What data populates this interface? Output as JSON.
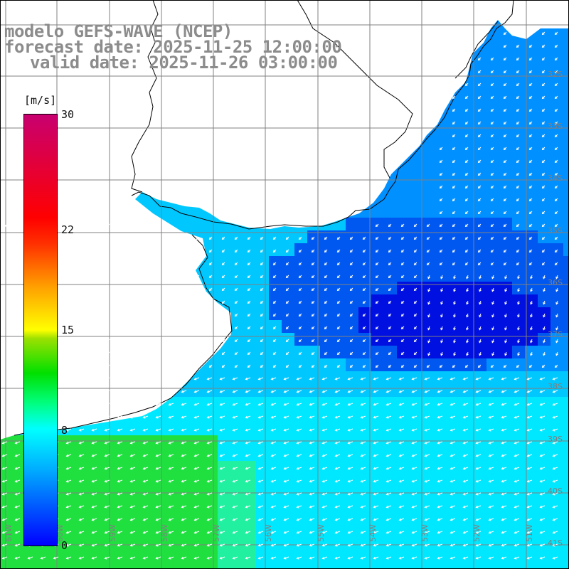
{
  "header": {
    "title_line1": "modelo GEFS-WAVE (NCEP)",
    "title_line2": "forecast date: 2025-11-25 12:00:00",
    "title_line3": "valid date: 2025-11-26 03:00:00"
  },
  "colorbar": {
    "unit": "[m/s]",
    "min": 0,
    "max": 30,
    "ticks": [
      {
        "label": "30",
        "value": 30
      },
      {
        "label": "22",
        "value": 22
      },
      {
        "label": "15",
        "value": 15
      },
      {
        "label": "8",
        "value": 8
      },
      {
        "label": "0",
        "value": 0
      }
    ],
    "colors": [
      "#0000ff",
      "#00b0ff",
      "#00ffff",
      "#00ff80",
      "#00e000",
      "#ffff00",
      "#ff0000",
      "#c80070"
    ]
  },
  "map": {
    "lat_labels": [
      "32S",
      "33S",
      "34S",
      "35S",
      "36S",
      "37S",
      "38S",
      "39S",
      "40S",
      "41S"
    ],
    "lon_labels": [
      "61W",
      "60W",
      "59W",
      "58W",
      "57W",
      "56W",
      "55W",
      "54W",
      "53W",
      "52W",
      "51W"
    ],
    "land_color": "#ffffff",
    "grid_color": "#808080",
    "coast_color": "#000000",
    "arrow_color": "#ffffff",
    "field_description_colors": {
      "weak": "#0010e0",
      "medium": "#00a0ff",
      "strong": "#00ffff",
      "very_strong": "#20e040"
    }
  }
}
